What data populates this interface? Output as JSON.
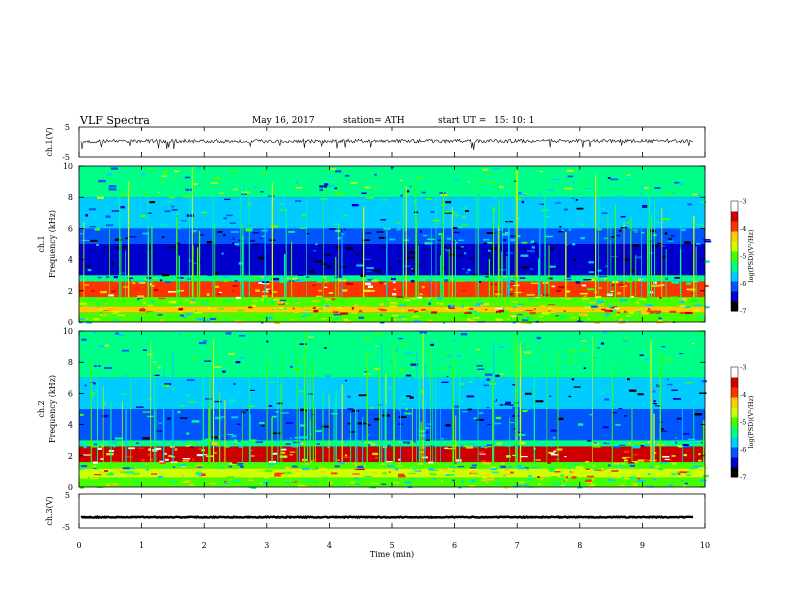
{
  "header": {
    "title": "VLF  Spectra",
    "date": "May 16, 2017",
    "station": "station= ATH",
    "start_label": "start  UT  =",
    "start_time": "15: 10: 1"
  },
  "chart_data": [
    {
      "type": "line",
      "panel": "ch1-waveform",
      "ylabel": "ch.1(V)",
      "yticks": [
        "5",
        "-5"
      ],
      "ylim": [
        -5,
        5
      ],
      "xlim": [
        0,
        10
      ],
      "note_values": "noisy waveform oscillating around about 0.3 V with amplitude roughly ±0.6 V and sparse downward spikes to about -2 V",
      "baseline": 0.3,
      "amplitude": 0.6
    },
    {
      "type": "heatmap",
      "panel": "ch1-spectrogram",
      "ylabel_line1": "ch.1",
      "ylabel_line2": "Frequency (kHz)",
      "yticks": [
        "0",
        "2",
        "4",
        "6",
        "8",
        "10"
      ],
      "ylim": [
        0,
        10
      ],
      "xlim": [
        0,
        10
      ],
      "bands_khz": [
        {
          "from": 0.0,
          "to": 0.6,
          "level": -5.2
        },
        {
          "from": 0.6,
          "to": 1.0,
          "level": -4.2
        },
        {
          "from": 1.0,
          "to": 1.6,
          "level": -5.0
        },
        {
          "from": 1.6,
          "to": 2.6,
          "level": -3.8
        },
        {
          "from": 2.6,
          "to": 3.0,
          "level": -5.6
        },
        {
          "from": 3.0,
          "to": 5.0,
          "level": -6.8
        },
        {
          "from": 5.0,
          "to": 6.0,
          "level": -6.2
        },
        {
          "from": 6.0,
          "to": 8.0,
          "level": -5.9
        },
        {
          "from": 8.0,
          "to": 10.0,
          "level": -5.5
        }
      ]
    },
    {
      "type": "heatmap",
      "panel": "ch2-spectrogram",
      "ylabel_line1": "ch.2",
      "ylabel_line2": "Frequency (kHz)",
      "yticks": [
        "0",
        "2",
        "4",
        "6",
        "8",
        "10"
      ],
      "ylim": [
        0,
        10
      ],
      "xlim": [
        0,
        10
      ],
      "bands_khz": [
        {
          "from": 0.0,
          "to": 0.6,
          "level": -5.0
        },
        {
          "from": 0.6,
          "to": 1.2,
          "level": -4.6
        },
        {
          "from": 1.2,
          "to": 1.6,
          "level": -5.2
        },
        {
          "from": 1.6,
          "to": 2.6,
          "level": -3.6
        },
        {
          "from": 2.6,
          "to": 3.0,
          "level": -5.4
        },
        {
          "from": 3.0,
          "to": 5.0,
          "level": -6.2
        },
        {
          "from": 5.0,
          "to": 7.0,
          "level": -6.0
        },
        {
          "from": 7.0,
          "to": 10.0,
          "level": -5.6
        }
      ]
    },
    {
      "type": "line",
      "panel": "ch3-waveform",
      "ylabel": "ch.3(V)",
      "yticks": [
        "5",
        "-5"
      ],
      "ylim": [
        -5,
        5
      ],
      "xlim": [
        0,
        10
      ],
      "baseline": -1.8,
      "amplitude": 0.15
    }
  ],
  "x_axis": {
    "label": "Time  (min)",
    "ticks": [
      "0",
      "1",
      "2",
      "3",
      "4",
      "5",
      "6",
      "7",
      "8",
      "9",
      "10"
    ]
  },
  "colorbar": {
    "label": "log(PSD)(V²/Hz)",
    "ticks": [
      "-3",
      "-4",
      "-5",
      "-6",
      "-7"
    ],
    "range": [
      -7,
      -3
    ],
    "colors": [
      "#000000",
      "#0000cc",
      "#0055ff",
      "#00ccff",
      "#00ff88",
      "#44ff00",
      "#ccff00",
      "#ffcc00",
      "#ff3300",
      "#cc0000",
      "#ffffff"
    ]
  }
}
